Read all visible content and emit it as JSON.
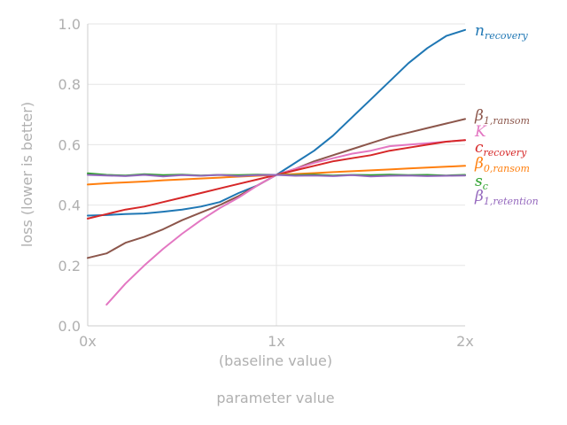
{
  "chart_data": {
    "type": "line",
    "title": "",
    "xlabel": "parameter value",
    "ylabel": "loss (lower is better)",
    "xlim": [
      0,
      2
    ],
    "ylim": [
      0,
      1
    ],
    "x_ticks": [
      {
        "value": 0,
        "label": "0x"
      },
      {
        "value": 1,
        "label": "1x"
      },
      {
        "value": 2,
        "label": "2x"
      }
    ],
    "x_sub_label": "(baseline value)",
    "y_ticks": [
      {
        "value": 0.0,
        "label": "0.0"
      },
      {
        "value": 0.2,
        "label": "0.2"
      },
      {
        "value": 0.4,
        "label": "0.4"
      },
      {
        "value": 0.6,
        "label": "0.6"
      },
      {
        "value": 0.8,
        "label": "0.8"
      },
      {
        "value": 1.0,
        "label": "1.0"
      }
    ],
    "grid": true,
    "legend_placement": "right, at line ends",
    "series": [
      {
        "name": "n",
        "sub": "recovery",
        "color": "#1f77b4",
        "x": [
          0,
          0.1,
          0.2,
          0.3,
          0.4,
          0.5,
          0.6,
          0.7,
          0.8,
          0.9,
          1.0,
          1.1,
          1.2,
          1.3,
          1.4,
          1.5,
          1.6,
          1.7,
          1.8,
          1.9,
          2.0
        ],
        "y": [
          0.365,
          0.367,
          0.37,
          0.372,
          0.378,
          0.385,
          0.395,
          0.41,
          0.44,
          0.465,
          0.5,
          0.54,
          0.58,
          0.63,
          0.69,
          0.75,
          0.81,
          0.87,
          0.92,
          0.96,
          0.98
        ]
      },
      {
        "name": "β",
        "sub": "1,ransom",
        "color": "#8c564b",
        "x": [
          0,
          0.1,
          0.2,
          0.3,
          0.4,
          0.5,
          0.6,
          0.7,
          0.8,
          0.9,
          1.0,
          1.1,
          1.2,
          1.3,
          1.4,
          1.5,
          1.6,
          1.7,
          1.8,
          1.9,
          2.0
        ],
        "y": [
          0.225,
          0.24,
          0.275,
          0.295,
          0.32,
          0.35,
          0.375,
          0.4,
          0.43,
          0.465,
          0.5,
          0.52,
          0.545,
          0.565,
          0.585,
          0.605,
          0.625,
          0.64,
          0.655,
          0.67,
          0.685
        ]
      },
      {
        "name": "K",
        "sub": "",
        "color": "#e377c2",
        "x": [
          0.1,
          0.2,
          0.3,
          0.4,
          0.5,
          0.6,
          0.7,
          0.8,
          0.9,
          1.0,
          1.1,
          1.2,
          1.3,
          1.4,
          1.5,
          1.6,
          1.7,
          1.8,
          1.9,
          2.0
        ],
        "y": [
          0.07,
          0.14,
          0.2,
          0.255,
          0.305,
          0.35,
          0.39,
          0.425,
          0.465,
          0.5,
          0.52,
          0.54,
          0.555,
          0.57,
          0.58,
          0.595,
          0.6,
          0.605,
          0.61,
          0.615
        ]
      },
      {
        "name": "c",
        "sub": "recovery",
        "color": "#d62728",
        "x": [
          0,
          0.1,
          0.2,
          0.3,
          0.4,
          0.5,
          0.6,
          0.7,
          0.8,
          0.9,
          1.0,
          1.1,
          1.2,
          1.3,
          1.4,
          1.5,
          1.6,
          1.7,
          1.8,
          1.9,
          2.0
        ],
        "y": [
          0.355,
          0.37,
          0.385,
          0.395,
          0.41,
          0.425,
          0.44,
          0.455,
          0.47,
          0.485,
          0.5,
          0.515,
          0.53,
          0.545,
          0.555,
          0.565,
          0.58,
          0.59,
          0.6,
          0.61,
          0.615
        ]
      },
      {
        "name": "β",
        "sub": "0,ransom",
        "color": "#ff7f0e",
        "x": [
          0,
          0.1,
          0.2,
          0.3,
          0.4,
          0.5,
          0.6,
          0.7,
          0.8,
          0.9,
          1.0,
          1.1,
          1.2,
          1.3,
          1.4,
          1.5,
          1.6,
          1.7,
          1.8,
          1.9,
          2.0
        ],
        "y": [
          0.468,
          0.472,
          0.475,
          0.478,
          0.482,
          0.485,
          0.488,
          0.491,
          0.494,
          0.497,
          0.5,
          0.503,
          0.506,
          0.509,
          0.512,
          0.515,
          0.518,
          0.521,
          0.524,
          0.527,
          0.53
        ]
      },
      {
        "name": "s",
        "sub": "c",
        "color": "#2ca02c",
        "x": [
          0,
          0.1,
          0.2,
          0.3,
          0.4,
          0.5,
          0.6,
          0.7,
          0.8,
          0.9,
          1.0,
          1.1,
          1.2,
          1.3,
          1.4,
          1.5,
          1.6,
          1.7,
          1.8,
          1.9,
          2.0
        ],
        "y": [
          0.505,
          0.5,
          0.498,
          0.502,
          0.499,
          0.501,
          0.498,
          0.5,
          0.499,
          0.501,
          0.5,
          0.499,
          0.501,
          0.498,
          0.5,
          0.499,
          0.501,
          0.499,
          0.5,
          0.498,
          0.5
        ]
      },
      {
        "name": "β",
        "sub": "1,retention",
        "color": "#9467bd",
        "x": [
          0,
          0.1,
          0.2,
          0.3,
          0.4,
          0.5,
          0.6,
          0.7,
          0.8,
          0.9,
          1.0,
          1.1,
          1.2,
          1.3,
          1.4,
          1.5,
          1.6,
          1.7,
          1.8,
          1.9,
          2.0
        ],
        "y": [
          0.5,
          0.498,
          0.496,
          0.5,
          0.495,
          0.499,
          0.497,
          0.5,
          0.496,
          0.499,
          0.5,
          0.497,
          0.498,
          0.496,
          0.499,
          0.495,
          0.497,
          0.498,
          0.496,
          0.497,
          0.498
        ]
      }
    ],
    "legend_entries": [
      {
        "series": 0,
        "name": "n",
        "sub": "recovery",
        "color": "#1f77b4"
      },
      {
        "series": 1,
        "name": "β",
        "sub": "1,ransom",
        "color": "#8c564b"
      },
      {
        "series": 2,
        "name": "K",
        "sub": "",
        "color": "#e377c2"
      },
      {
        "series": 3,
        "name": "c",
        "sub": "recovery",
        "color": "#d62728"
      },
      {
        "series": 4,
        "name": "β",
        "sub": "0,ransom",
        "color": "#ff7f0e"
      },
      {
        "series": 5,
        "name": "s",
        "sub": "c",
        "color": "#2ca02c"
      },
      {
        "series": 6,
        "name": "β",
        "sub": "1,retention",
        "color": "#9467bd"
      }
    ]
  }
}
